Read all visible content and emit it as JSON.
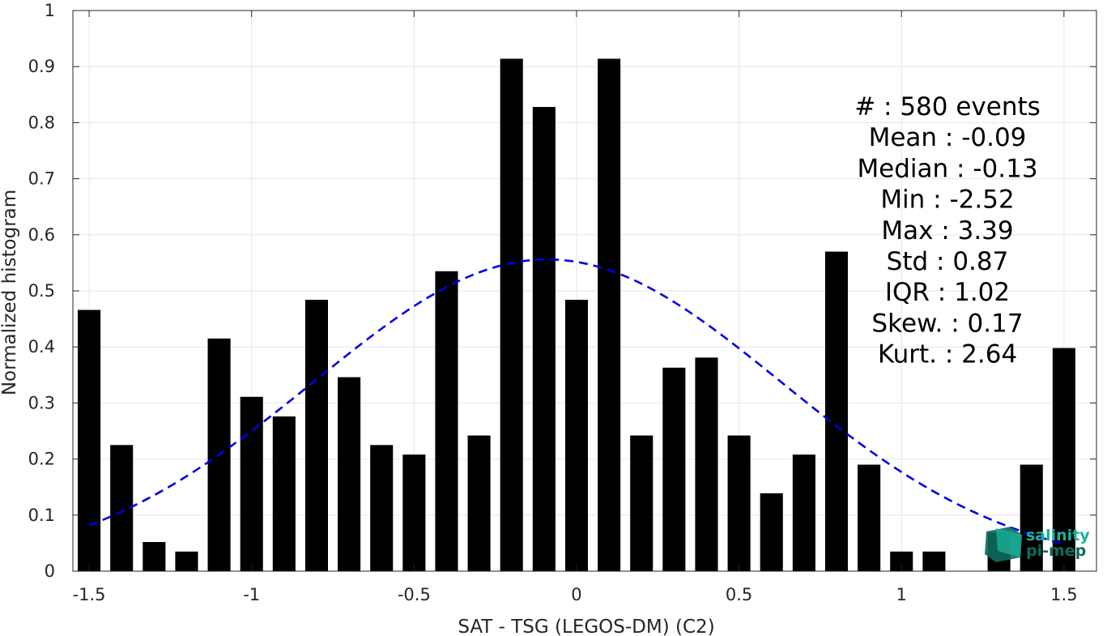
{
  "chart_data": {
    "type": "bar",
    "xlabel": "SAT - TSG (LEGOS-DM) (C2)",
    "ylabel": "Normalized histogram",
    "xlim": [
      -1.55,
      1.6
    ],
    "ylim": [
      0,
      1
    ],
    "xticks": [
      -1.5,
      -1,
      -0.5,
      0,
      0.5,
      1,
      1.5
    ],
    "xtick_labels": [
      "-1.5",
      "-1",
      "-0.5",
      "0",
      "0.5",
      "1",
      "1.5"
    ],
    "yticks": [
      0,
      0.1,
      0.2,
      0.3,
      0.4,
      0.5,
      0.6,
      0.7,
      0.8,
      0.9,
      1
    ],
    "ytick_labels": [
      "0",
      "0.1",
      "0.2",
      "0.3",
      "0.4",
      "0.5",
      "0.6",
      "0.7",
      "0.8",
      "0.9",
      "1"
    ],
    "grid": true,
    "bar_width": 0.07,
    "bars": {
      "x": [
        -1.5,
        -1.4,
        -1.3,
        -1.2,
        -1.1,
        -1.0,
        -0.9,
        -0.8,
        -0.7,
        -0.6,
        -0.5,
        -0.4,
        -0.3,
        -0.2,
        -0.1,
        0.0,
        0.1,
        0.2,
        0.3,
        0.4,
        0.5,
        0.6,
        0.7,
        0.8,
        0.9,
        1.0,
        1.1,
        1.2,
        1.3,
        1.4,
        1.5
      ],
      "values": [
        0.466,
        0.225,
        0.052,
        0.035,
        0.415,
        0.311,
        0.276,
        0.484,
        0.346,
        0.225,
        0.208,
        0.535,
        0.242,
        0.914,
        0.828,
        0.484,
        0.914,
        0.242,
        0.363,
        0.381,
        0.242,
        0.139,
        0.208,
        0.57,
        0.19,
        0.035,
        0.035,
        0.0,
        0.069,
        0.19,
        0.398
      ],
      "color": "#000000"
    },
    "fit_curve": {
      "style": "dashed",
      "color": "#0000e6",
      "mean": -0.09,
      "std": 0.72,
      "peak": 0.556,
      "x_range": [
        -1.5,
        1.5
      ]
    },
    "stats": [
      {
        "label": "#  ",
        "value": "580 events"
      },
      {
        "label": "Mean",
        "value": "-0.09"
      },
      {
        "label": "Median",
        "value": "-0.13"
      },
      {
        "label": "Min",
        "value": "-2.52"
      },
      {
        "label": "Max",
        "value": "3.39"
      },
      {
        "label": "Std",
        "value": "0.87"
      },
      {
        "label": "IQR",
        "value": "1.02"
      },
      {
        "label": "Skew.",
        "value": "0.17"
      },
      {
        "label": "Kurt.",
        "value": "2.64"
      }
    ]
  },
  "logo": {
    "line1": "salinity",
    "line2": "pi-mep",
    "colors": {
      "teal": "#19b39a",
      "dark": "#0d6b5e"
    }
  }
}
